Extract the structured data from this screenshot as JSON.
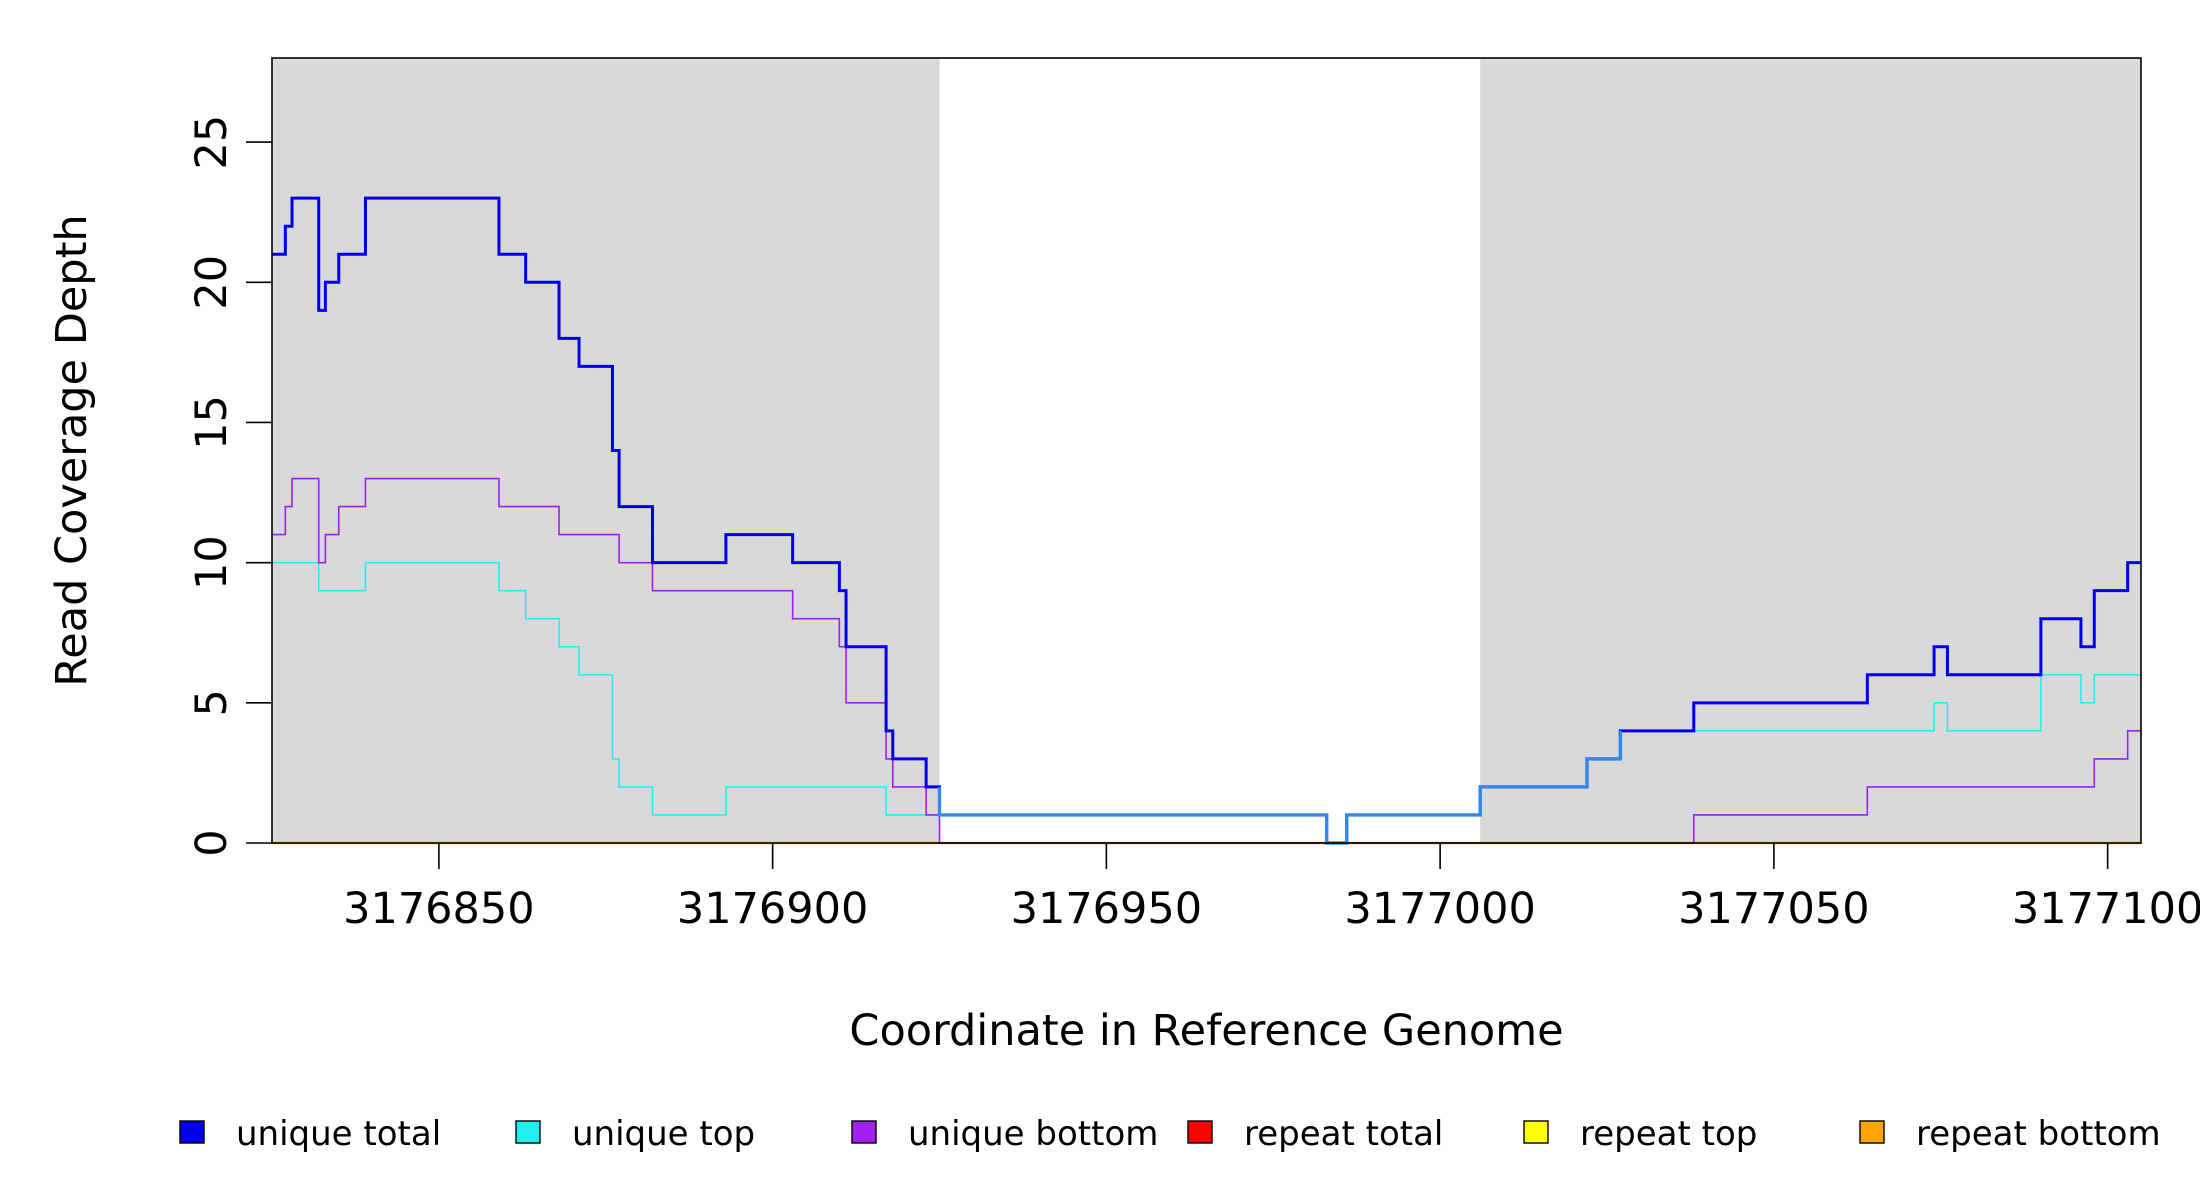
{
  "chart_data": {
    "type": "line",
    "xlabel": "Coordinate in Reference Genome",
    "ylabel": "Read Coverage Depth",
    "xlim": [
      3176825,
      3177105
    ],
    "ylim": [
      0,
      28
    ],
    "x_ticks": [
      3176850,
      3176900,
      3176950,
      3177000,
      3177050,
      3177100
    ],
    "x_tick_labels": [
      "3176850",
      "3176900",
      "3176950",
      "3177000",
      "3177050",
      "3177100"
    ],
    "y_ticks": [
      0,
      5,
      10,
      15,
      20,
      25
    ],
    "y_tick_labels": [
      "0",
      "5",
      "10",
      "15",
      "20",
      "25"
    ],
    "grid": false,
    "shaded_regions": [
      {
        "x_start": 3176825,
        "x_end": 3176925,
        "color": "#d9d9d9"
      },
      {
        "x_start": 3177006,
        "x_end": 3177105,
        "color": "#d9d9d9"
      }
    ],
    "legend_position": "bottom",
    "series": [
      {
        "name": "unique total",
        "color": "#0000ee",
        "line_width": 3,
        "points": [
          [
            3176825,
            21
          ],
          [
            3176827,
            21
          ],
          [
            3176827,
            22
          ],
          [
            3176828,
            22
          ],
          [
            3176828,
            23
          ],
          [
            3176832,
            23
          ],
          [
            3176832,
            19
          ],
          [
            3176833,
            19
          ],
          [
            3176833,
            20
          ],
          [
            3176835,
            20
          ],
          [
            3176835,
            21
          ],
          [
            3176839,
            21
          ],
          [
            3176839,
            23
          ],
          [
            3176859,
            23
          ],
          [
            3176859,
            21
          ],
          [
            3176863,
            21
          ],
          [
            3176863,
            20
          ],
          [
            3176868,
            20
          ],
          [
            3176868,
            18
          ],
          [
            3176871,
            18
          ],
          [
            3176871,
            17
          ],
          [
            3176876,
            17
          ],
          [
            3176876,
            14
          ],
          [
            3176877,
            14
          ],
          [
            3176877,
            12
          ],
          [
            3176882,
            12
          ],
          [
            3176882,
            10
          ],
          [
            3176893,
            10
          ],
          [
            3176893,
            11
          ],
          [
            3176903,
            11
          ],
          [
            3176903,
            10
          ],
          [
            3176910,
            10
          ],
          [
            3176910,
            9
          ],
          [
            3176911,
            9
          ],
          [
            3176911,
            7
          ],
          [
            3176917,
            7
          ],
          [
            3176917,
            4
          ],
          [
            3176918,
            4
          ],
          [
            3176918,
            3
          ],
          [
            3176923,
            3
          ],
          [
            3176923,
            2
          ],
          [
            3176925,
            2
          ],
          [
            3176925,
            1
          ],
          [
            3176983,
            1
          ],
          [
            3176983,
            0
          ],
          [
            3176986,
            0
          ],
          [
            3176986,
            1
          ],
          [
            3177006,
            1
          ],
          [
            3177006,
            2
          ],
          [
            3177022,
            2
          ],
          [
            3177022,
            3
          ],
          [
            3177027,
            3
          ],
          [
            3177027,
            4
          ],
          [
            3177038,
            4
          ],
          [
            3177038,
            5
          ],
          [
            3177064,
            5
          ],
          [
            3177064,
            6
          ],
          [
            3177074,
            6
          ],
          [
            3177074,
            7
          ],
          [
            3177076,
            7
          ],
          [
            3177076,
            6
          ],
          [
            3177090,
            6
          ],
          [
            3177090,
            8
          ],
          [
            3177096,
            8
          ],
          [
            3177096,
            7
          ],
          [
            3177098,
            7
          ],
          [
            3177098,
            9
          ],
          [
            3177103,
            9
          ],
          [
            3177103,
            10
          ],
          [
            3177105,
            10
          ]
        ]
      },
      {
        "name": "unique top",
        "color": "#22eeee",
        "line_width": 1.6,
        "points": [
          [
            3176825,
            10
          ],
          [
            3176832,
            10
          ],
          [
            3176832,
            9
          ],
          [
            3176839,
            9
          ],
          [
            3176839,
            10
          ],
          [
            3176859,
            10
          ],
          [
            3176859,
            9
          ],
          [
            3176863,
            9
          ],
          [
            3176863,
            8
          ],
          [
            3176868,
            8
          ],
          [
            3176868,
            7
          ],
          [
            3176871,
            7
          ],
          [
            3176871,
            6
          ],
          [
            3176876,
            6
          ],
          [
            3176876,
            3
          ],
          [
            3176877,
            3
          ],
          [
            3176877,
            2
          ],
          [
            3176882,
            2
          ],
          [
            3176882,
            1
          ],
          [
            3176893,
            1
          ],
          [
            3176893,
            2
          ],
          [
            3176917,
            2
          ],
          [
            3176917,
            1
          ],
          [
            3176925,
            1
          ],
          [
            3176983,
            1
          ],
          [
            3176983,
            0
          ],
          [
            3176986,
            0
          ],
          [
            3176986,
            1
          ],
          [
            3177006,
            1
          ],
          [
            3177006,
            2
          ],
          [
            3177022,
            2
          ],
          [
            3177022,
            3
          ],
          [
            3177027,
            3
          ],
          [
            3177027,
            4
          ],
          [
            3177074,
            4
          ],
          [
            3177074,
            5
          ],
          [
            3177076,
            5
          ],
          [
            3177076,
            4
          ],
          [
            3177090,
            4
          ],
          [
            3177090,
            6
          ],
          [
            3177096,
            6
          ],
          [
            3177096,
            5
          ],
          [
            3177098,
            5
          ],
          [
            3177098,
            6
          ],
          [
            3177105,
            6
          ]
        ]
      },
      {
        "name": "unique bottom",
        "color": "#a020f0",
        "line_width": 1.6,
        "points": [
          [
            3176825,
            11
          ],
          [
            3176827,
            11
          ],
          [
            3176827,
            12
          ],
          [
            3176828,
            12
          ],
          [
            3176828,
            13
          ],
          [
            3176832,
            13
          ],
          [
            3176832,
            10
          ],
          [
            3176833,
            10
          ],
          [
            3176833,
            11
          ],
          [
            3176835,
            11
          ],
          [
            3176835,
            12
          ],
          [
            3176839,
            12
          ],
          [
            3176839,
            13
          ],
          [
            3176859,
            13
          ],
          [
            3176859,
            12
          ],
          [
            3176868,
            12
          ],
          [
            3176868,
            11
          ],
          [
            3176877,
            11
          ],
          [
            3176877,
            10
          ],
          [
            3176882,
            10
          ],
          [
            3176882,
            9
          ],
          [
            3176903,
            9
          ],
          [
            3176903,
            8
          ],
          [
            3176910,
            8
          ],
          [
            3176910,
            7
          ],
          [
            3176911,
            7
          ],
          [
            3176911,
            5
          ],
          [
            3176917,
            5
          ],
          [
            3176917,
            3
          ],
          [
            3176918,
            3
          ],
          [
            3176918,
            2
          ],
          [
            3176923,
            2
          ],
          [
            3176923,
            1
          ],
          [
            3176925,
            1
          ],
          [
            3176925,
            0
          ],
          [
            3177038,
            0
          ],
          [
            3177038,
            1
          ],
          [
            3177064,
            1
          ],
          [
            3177064,
            2
          ],
          [
            3177098,
            2
          ],
          [
            3177098,
            3
          ],
          [
            3177103,
            3
          ],
          [
            3177103,
            4
          ],
          [
            3177105,
            4
          ]
        ]
      },
      {
        "name": "repeat total",
        "color": "#ff0000",
        "line_width": 1.6,
        "points": [
          [
            3176825,
            0
          ],
          [
            3177105,
            0
          ]
        ]
      },
      {
        "name": "repeat top",
        "color": "#ffff00",
        "line_width": 1.6,
        "points": [
          [
            3176825,
            0
          ],
          [
            3177105,
            0
          ]
        ]
      },
      {
        "name": "repeat bottom",
        "color": "#ffa500",
        "line_width": 2.4,
        "points": [
          [
            3176825,
            0
          ],
          [
            3177105,
            0
          ]
        ]
      }
    ],
    "overlap_series": {
      "color": "#3388ee",
      "line_width": 3.4,
      "x_start": 3176925,
      "x_end": 3177027,
      "note_series": [
        "unique total",
        "unique top"
      ]
    }
  }
}
